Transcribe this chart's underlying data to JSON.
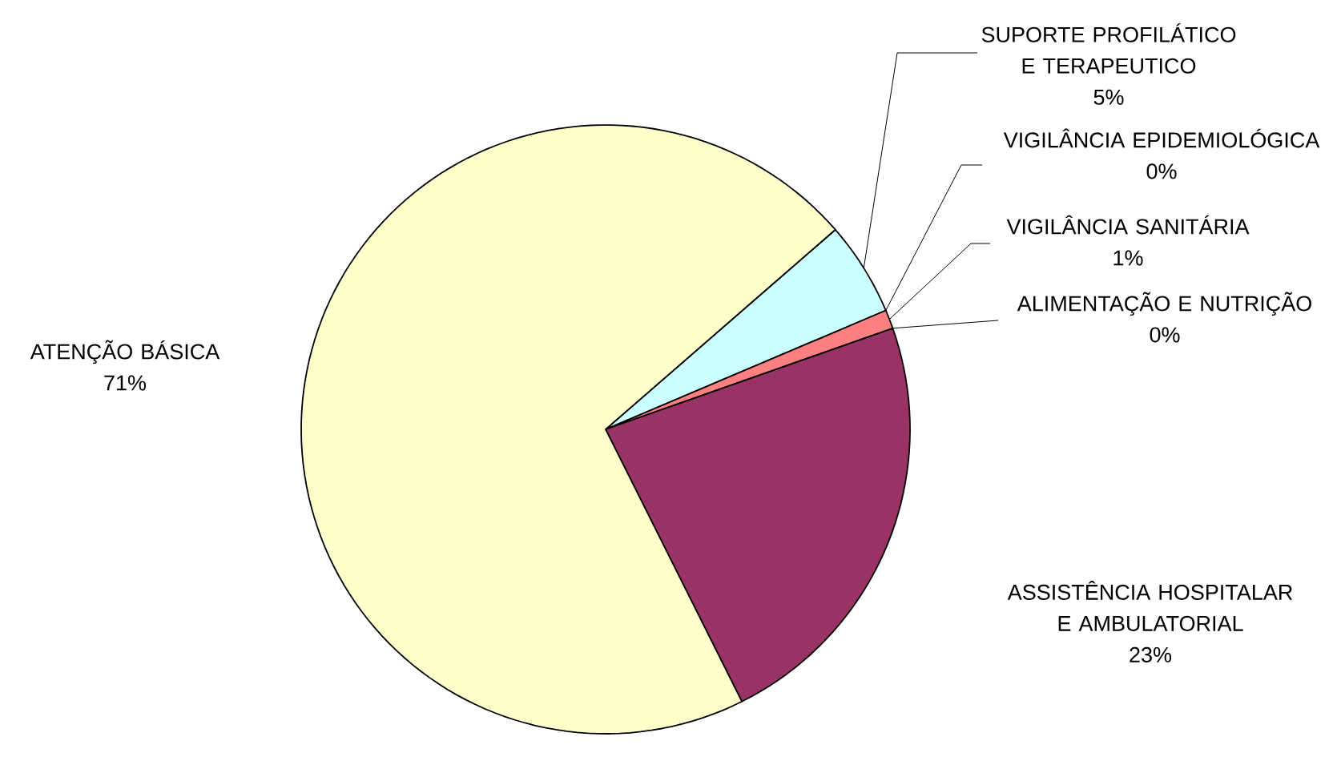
{
  "chart_data": {
    "type": "pie",
    "categories": [
      "SUPORTE PROFILÁTICO E TERAPEUTICO",
      "VIGILÂNCIA EPIDEMIOLÓGICA",
      "VIGILÂNCIA SANITÁRIA",
      "ALIMENTAÇÃO E NUTRIÇÃO",
      "ASSISTÊNCIA HOSPITALAR E AMBULATORIAL",
      "ATENÇÃO BÁSICA"
    ],
    "values": [
      5,
      0,
      1,
      0,
      23,
      71
    ],
    "value_labels": [
      "5%",
      "0%",
      "1%",
      "0%",
      "23%",
      "71%"
    ],
    "colors": [
      "#ccffff",
      "#660066",
      "#ff8080",
      "#0066cc",
      "#993366",
      "#ffffcc"
    ]
  }
}
